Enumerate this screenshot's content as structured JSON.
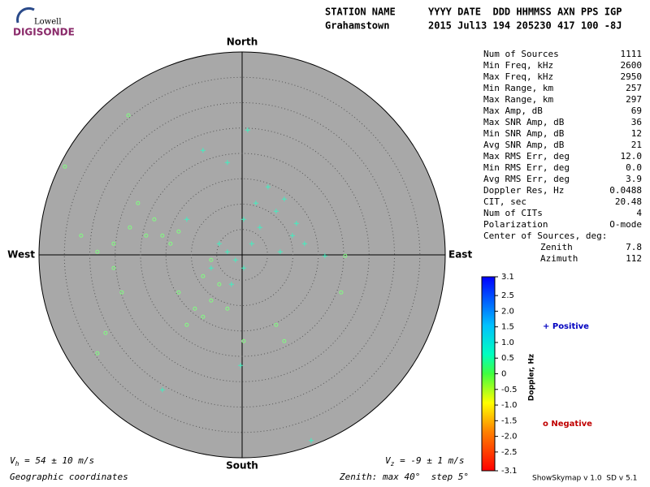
{
  "logo": {
    "top": "Lowell",
    "brand": "DIGISONDE"
  },
  "header": {
    "label1": "STATION NAME",
    "label2": "YYYY DATE  DDD HHMMSS AXN PPS IGP",
    "station": "Grahamstown",
    "values": "2015 Jul13 194 205230 417 100 -8J"
  },
  "stats": [
    [
      "Num of Sources",
      "1111"
    ],
    [
      "Min Freq, kHz",
      "2600"
    ],
    [
      "Max Freq, kHz",
      "2950"
    ],
    [
      "Min Range, km",
      "257"
    ],
    [
      "Max Range, km",
      "297"
    ],
    [
      "Max Amp, dB",
      "69"
    ],
    [
      "Max SNR Amp, dB",
      "36"
    ],
    [
      "Min SNR Amp, dB",
      "12"
    ],
    [
      "Avg SNR Amp, dB",
      "21"
    ],
    [
      "Max RMS Err, deg",
      "12.0"
    ],
    [
      "Min RMS Err, deg",
      "0.0"
    ],
    [
      "Avg RMS Err, deg",
      "3.9"
    ],
    [
      "Doppler Res, Hz",
      "0.0488"
    ],
    [
      "CIT, sec",
      "20.48"
    ],
    [
      "Num of CITs",
      "4"
    ],
    [
      "Polarization",
      "O-mode"
    ]
  ],
  "center": {
    "title": "Center of Sources, deg:",
    "rows": [
      [
        "Zenith",
        "7.8"
      ],
      [
        "Azimuth",
        "112"
      ]
    ]
  },
  "footer": {
    "vh": {
      "symbol": "V",
      "sub": "h",
      "text": " = 54 ± 10 m/s"
    },
    "vz": {
      "symbol": "V",
      "sub": "z",
      "text": " = -9 ± 1 m/s"
    },
    "coords": "Geographic coordinates",
    "zenith": "Zenith: max 40°  step 5°",
    "version": "ShowSkymap v 1.0  SD v 5.1"
  },
  "chart_data": {
    "type": "polar-scatter",
    "directions": {
      "north": "North",
      "south": "South",
      "west": "West",
      "east": "East"
    },
    "rlim": [
      0,
      40
    ],
    "rticks": [
      5,
      10,
      15,
      20,
      25,
      30,
      35
    ],
    "colorbar": {
      "label": "Doppler, Hz",
      "clim": [
        -3.1,
        3.1
      ],
      "ticks": [
        3.1,
        2.5,
        {
          "value": 2.0,
          "label": "2.0"
        },
        1.5,
        {
          "value": 1.0,
          "label": "1.0"
        },
        0.5,
        0,
        -0.5,
        {
          "value": -1.0,
          "label": "-1.0"
        },
        -1.5,
        {
          "value": -2.0,
          "label": "-2.0"
        },
        -2.5,
        -3.1
      ]
    },
    "series": [
      {
        "name": "+ Positive",
        "color": "#0000c0",
        "marker": "cross",
        "point_color": "#40f0c0",
        "x": [
          -1.3,
          0.3,
          -2.9,
          1.9,
          3.5,
          6.7,
          8.3,
          5.1,
          9.9,
          12.3,
          0.3,
          -4.5,
          -6.1,
          1.1,
          -7.7,
          -2.9,
          2.7,
          7.5,
          10.7,
          -2.1,
          -0.3,
          16.3,
          -10.9,
          -15.7,
          13.6
        ],
        "values": [
          -1.0,
          -2.6,
          0.6,
          2.2,
          5.4,
          8.6,
          11.0,
          13.4,
          3.8,
          2.2,
          7.0,
          2.2,
          -2.6,
          24.6,
          20.6,
          18.2,
          10.2,
          0.6,
          6.2,
          -5.8,
          -21.8,
          -0.2,
          7.0,
          -26.6,
          -36.6
        ]
      },
      {
        "name": "o Negative",
        "color": "#c00000",
        "marker": "circle",
        "point_color": "#80ff80",
        "x": [
          -22.1,
          -18.9,
          -15.7,
          -12.5,
          -17.3,
          -14.1,
          -25.3,
          -28.5,
          -31.7,
          -9.3,
          -7.7,
          -10.9,
          -6.1,
          -2.9,
          -12.5,
          -23.7,
          -26.9,
          -28.5,
          0.3,
          6.7,
          8.3,
          19.5,
          20.3,
          -22.4,
          -34.9,
          -20.5,
          -25.3,
          -6.1,
          -7.7,
          -4.5
        ],
        "values": [
          5.4,
          3.8,
          3.8,
          4.6,
          7.0,
          2.2,
          2.2,
          0.6,
          3.8,
          -10.6,
          -12.2,
          -13.8,
          -9.0,
          -10.6,
          -7.4,
          -7.4,
          -15.4,
          -19.4,
          -17.0,
          -13.8,
          -17.0,
          -7.4,
          -0.2,
          27.5,
          17.4,
          10.2,
          -2.6,
          -1.0,
          -4.2,
          -5.8
        ]
      }
    ]
  }
}
